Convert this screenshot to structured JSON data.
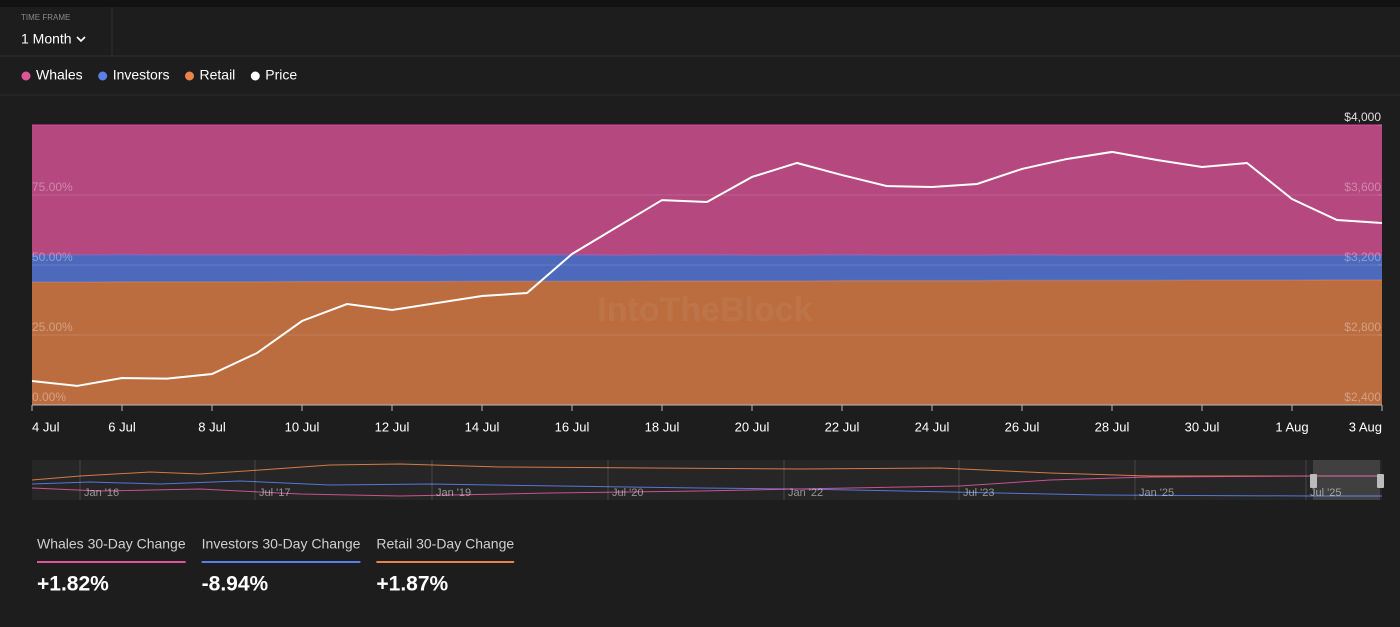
{
  "header": {
    "label": "TIME FRAME",
    "value": "1 Month"
  },
  "chart_data": {
    "type": "stacked_area",
    "watermark": "IntoTheBlock",
    "categories": [
      "4 Jul",
      null,
      "6 Jul",
      null,
      "8 Jul",
      null,
      "10 Jul",
      null,
      "12 Jul",
      null,
      "14 Jul",
      null,
      "16 Jul",
      null,
      "18 Jul",
      null,
      "20 Jul",
      null,
      "22 Jul",
      null,
      "24 Jul",
      null,
      "26 Jul",
      null,
      "28 Jul",
      null,
      "30 Jul",
      null,
      "1 Aug",
      null,
      "3 Aug"
    ],
    "series": [
      {
        "name": "Whales",
        "color": "#e0559a",
        "values": [
          46.4,
          46.4,
          46.3,
          46.4,
          46.4,
          46.4,
          46.4,
          46.4,
          46.4,
          46.5,
          46.4,
          46.4,
          46.4,
          46.5,
          46.4,
          46.4,
          46.5,
          46.5,
          46.4,
          46.5,
          46.5,
          46.5,
          46.4,
          46.5,
          46.5,
          46.5,
          46.5,
          46.5,
          46.5,
          46.5,
          46.5
        ]
      },
      {
        "name": "Investors",
        "color": "#5b7fe8",
        "values": [
          9.7,
          9.7,
          9.7,
          9.6,
          9.6,
          9.6,
          9.5,
          9.5,
          9.5,
          9.4,
          9.4,
          9.4,
          9.4,
          9.3,
          9.3,
          9.3,
          9.2,
          9.2,
          9.2,
          9.1,
          9.1,
          9.1,
          9.1,
          9.0,
          9.0,
          9.0,
          8.9,
          8.9,
          8.9,
          8.8,
          8.8
        ]
      },
      {
        "name": "Retail",
        "color": "#e8844a",
        "values": [
          43.9,
          43.9,
          44.0,
          44.0,
          44.0,
          44.0,
          44.1,
          44.1,
          44.1,
          44.1,
          44.2,
          44.2,
          44.2,
          44.2,
          44.3,
          44.3,
          44.3,
          44.3,
          44.4,
          44.4,
          44.4,
          44.4,
          44.5,
          44.5,
          44.5,
          44.5,
          44.6,
          44.6,
          44.6,
          44.7,
          44.7
        ]
      },
      {
        "name": "Price",
        "color": "#ffffff",
        "axis": "y2",
        "values": [
          2537,
          2509,
          2554,
          2551,
          2577,
          2697,
          2880,
          2977,
          2943,
          2983,
          3023,
          3040,
          3263,
          3417,
          3571,
          3560,
          3703,
          3783,
          3714,
          3651,
          3646,
          3663,
          3749,
          3806,
          3846,
          3800,
          3760,
          3783,
          3577,
          3457,
          3440
        ]
      }
    ],
    "ylim": [
      0,
      100
    ],
    "yticks": [
      {
        "value": 0,
        "label": "0.00%"
      },
      {
        "value": 25,
        "label": "25.00%"
      },
      {
        "value": 50,
        "label": "50.00%"
      },
      {
        "value": 75,
        "label": "75.00%"
      }
    ],
    "y2lim": [
      2400,
      4000
    ],
    "y2ticks": [
      {
        "value": 2400,
        "label": "$2,400"
      },
      {
        "value": 2800,
        "label": "$2,800"
      },
      {
        "value": 3200,
        "label": "$3,200"
      },
      {
        "value": 3600,
        "label": "$3,600"
      },
      {
        "value": 4000,
        "label": "$4,000"
      }
    ],
    "grid": true
  },
  "navigator": {
    "labels": [
      "Jan '16",
      "Jul '17",
      "Jan '19",
      "Jul '20",
      "Jan '22",
      "Jul '23",
      "Jan '25",
      "Jul '25"
    ]
  },
  "changes": [
    {
      "label": "Whales 30-Day Change",
      "value": "+1.82%",
      "color": "#e0559a"
    },
    {
      "label": "Investors 30-Day Change",
      "value": "-8.94%",
      "color": "#5b7fe8"
    },
    {
      "label": "Retail 30-Day Change",
      "value": "+1.87%",
      "color": "#e8844a"
    }
  ]
}
